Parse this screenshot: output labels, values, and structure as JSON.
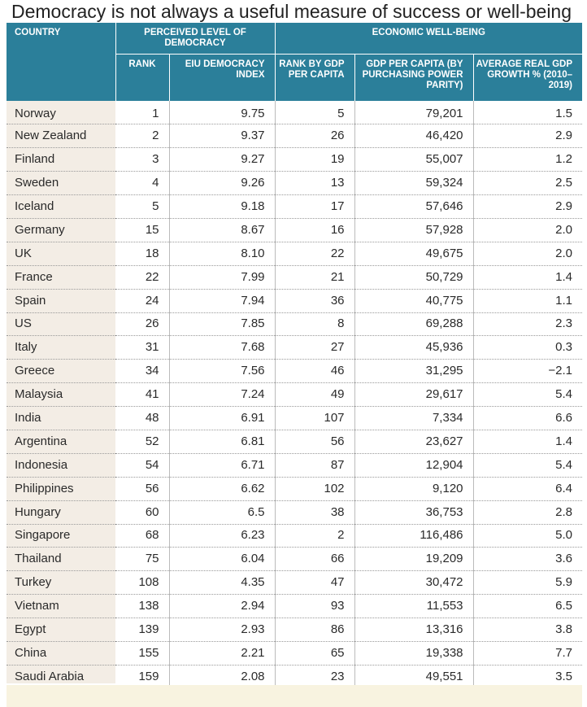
{
  "title": "Democracy is not always a useful measure of success or well-being",
  "headers": {
    "country": "COUNTRY",
    "democracy_group": "PERCEIVED LEVEL OF DEMOCRACY",
    "economic_group": "ECONOMIC WELL-BEING",
    "rank": "RANK",
    "eiu_index": "EIU DEMOCRACY INDEX",
    "gdp_rank": "RANK BY GDP PER CAPITA",
    "gdp_per_capita": "GDP PER CAPITA (BY PURCHASING POWER PARITY)",
    "growth": "AVERAGE REAL GDP GROWTH % (2010–2019)"
  },
  "rows": [
    {
      "country": "Norway",
      "rank": "1",
      "eiu": "9.75",
      "gdp_rank": "5",
      "gdp": "79,201",
      "growth": "1.5"
    },
    {
      "country": "New Zealand",
      "rank": "2",
      "eiu": "9.37",
      "gdp_rank": "26",
      "gdp": "46,420",
      "growth": "2.9"
    },
    {
      "country": "Finland",
      "rank": "3",
      "eiu": "9.27",
      "gdp_rank": "19",
      "gdp": "55,007",
      "growth": "1.2"
    },
    {
      "country": "Sweden",
      "rank": "4",
      "eiu": "9.26",
      "gdp_rank": "13",
      "gdp": "59,324",
      "growth": "2.5"
    },
    {
      "country": "Iceland",
      "rank": "5",
      "eiu": "9.18",
      "gdp_rank": "17",
      "gdp": "57,646",
      "growth": "2.9"
    },
    {
      "country": "Germany",
      "rank": "15",
      "eiu": "8.67",
      "gdp_rank": "16",
      "gdp": "57,928",
      "growth": "2.0"
    },
    {
      "country": "UK",
      "rank": "18",
      "eiu": "8.10",
      "gdp_rank": "22",
      "gdp": "49,675",
      "growth": "2.0"
    },
    {
      "country": "France",
      "rank": "22",
      "eiu": "7.99",
      "gdp_rank": "21",
      "gdp": "50,729",
      "growth": "1.4"
    },
    {
      "country": "Spain",
      "rank": "24",
      "eiu": "7.94",
      "gdp_rank": "36",
      "gdp": "40,775",
      "growth": "1.1"
    },
    {
      "country": "US",
      "rank": "26",
      "eiu": "7.85",
      "gdp_rank": "8",
      "gdp": "69,288",
      "growth": "2.3"
    },
    {
      "country": "Italy",
      "rank": "31",
      "eiu": "7.68",
      "gdp_rank": "27",
      "gdp": "45,936",
      "growth": "0.3"
    },
    {
      "country": "Greece",
      "rank": "34",
      "eiu": "7.56",
      "gdp_rank": "46",
      "gdp": "31,295",
      "growth": "−2.1"
    },
    {
      "country": "Malaysia",
      "rank": "41",
      "eiu": "7.24",
      "gdp_rank": "49",
      "gdp": "29,617",
      "growth": "5.4"
    },
    {
      "country": "India",
      "rank": "48",
      "eiu": "6.91",
      "gdp_rank": "107",
      "gdp": "7,334",
      "growth": "6.6"
    },
    {
      "country": "Argentina",
      "rank": "52",
      "eiu": "6.81",
      "gdp_rank": "56",
      "gdp": "23,627",
      "growth": "1.4"
    },
    {
      "country": "Indonesia",
      "rank": "54",
      "eiu": "6.71",
      "gdp_rank": "87",
      "gdp": "12,904",
      "growth": "5.4"
    },
    {
      "country": "Philippines",
      "rank": "56",
      "eiu": "6.62",
      "gdp_rank": "102",
      "gdp": "9,120",
      "growth": "6.4"
    },
    {
      "country": "Hungary",
      "rank": "60",
      "eiu": "6.5",
      "gdp_rank": "38",
      "gdp": "36,753",
      "growth": "2.8"
    },
    {
      "country": "Singapore",
      "rank": "68",
      "eiu": "6.23",
      "gdp_rank": "2",
      "gdp": "116,486",
      "growth": "5.0"
    },
    {
      "country": "Thailand",
      "rank": "75",
      "eiu": "6.04",
      "gdp_rank": "66",
      "gdp": "19,209",
      "growth": "3.6"
    },
    {
      "country": "Turkey",
      "rank": "108",
      "eiu": "4.35",
      "gdp_rank": "47",
      "gdp": "30,472",
      "growth": "5.9"
    },
    {
      "country": "Vietnam",
      "rank": "138",
      "eiu": "2.94",
      "gdp_rank": "93",
      "gdp": "11,553",
      "growth": "6.5"
    },
    {
      "country": "Egypt",
      "rank": "139",
      "eiu": "2.93",
      "gdp_rank": "86",
      "gdp": "13,316",
      "growth": "3.8"
    },
    {
      "country": "China",
      "rank": "155",
      "eiu": "2.21",
      "gdp_rank": "65",
      "gdp": "19,338",
      "growth": "7.7"
    },
    {
      "country": "Saudi Arabia",
      "rank": "159",
      "eiu": "2.08",
      "gdp_rank": "23",
      "gdp": "49,551",
      "growth": "3.5"
    }
  ],
  "colors": {
    "header_bg": "#2b7f9a",
    "country_col_bg": "#f3ede5",
    "value_bg": "#ffffff"
  }
}
